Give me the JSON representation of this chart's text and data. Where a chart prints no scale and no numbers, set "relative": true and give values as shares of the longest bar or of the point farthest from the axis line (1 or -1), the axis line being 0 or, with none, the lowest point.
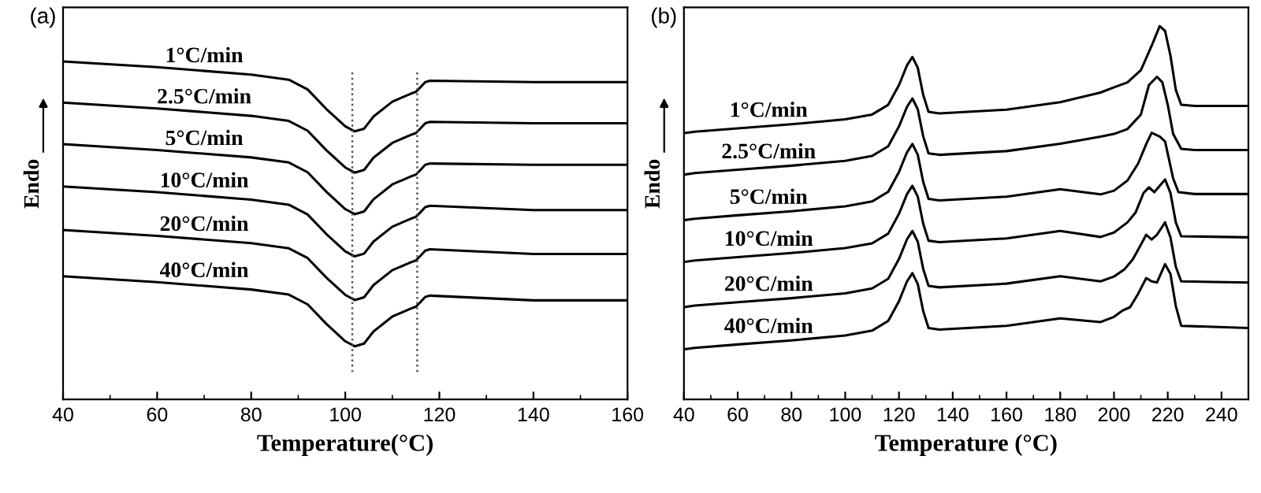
{
  "chart_data": [
    {
      "type": "line",
      "title": "(a)",
      "xlabel": "Temperature(°C)",
      "ylabel": "Endo",
      "relative": true,
      "xlim": [
        40,
        160
      ],
      "xticks": [
        40,
        60,
        80,
        100,
        120,
        140,
        160
      ],
      "grid": false,
      "line_style": "solid",
      "marker": "none",
      "x": [
        40,
        60,
        80,
        88,
        92,
        96,
        100,
        102,
        104,
        106,
        110,
        114,
        115,
        116,
        117,
        118,
        140,
        160
      ],
      "series": [
        {
          "name": "1°C/min",
          "color": "#000000",
          "values": [
            1.0,
            0.983,
            0.961,
            0.946,
            0.917,
            0.859,
            0.808,
            0.793,
            0.801,
            0.837,
            0.881,
            0.905,
            0.91,
            0.924,
            0.939,
            0.943,
            0.939,
            0.939
          ]
        },
        {
          "name": "2.5°C/min",
          "color": "#000000",
          "values": [
            0.878,
            0.861,
            0.839,
            0.824,
            0.795,
            0.737,
            0.686,
            0.671,
            0.679,
            0.715,
            0.759,
            0.783,
            0.788,
            0.802,
            0.817,
            0.821,
            0.817,
            0.817
          ]
        },
        {
          "name": "5°C/min",
          "color": "#000000",
          "values": [
            0.755,
            0.738,
            0.716,
            0.701,
            0.672,
            0.614,
            0.563,
            0.548,
            0.556,
            0.592,
            0.636,
            0.66,
            0.665,
            0.679,
            0.694,
            0.698,
            0.694,
            0.694
          ]
        },
        {
          "name": "10°C/min",
          "color": "#000000",
          "values": [
            0.63,
            0.613,
            0.591,
            0.576,
            0.547,
            0.489,
            0.438,
            0.423,
            0.431,
            0.467,
            0.511,
            0.535,
            0.54,
            0.554,
            0.569,
            0.573,
            0.56,
            0.56
          ]
        },
        {
          "name": "20°C/min",
          "color": "#000000",
          "values": [
            0.501,
            0.484,
            0.462,
            0.447,
            0.418,
            0.36,
            0.309,
            0.294,
            0.302,
            0.338,
            0.382,
            0.406,
            0.411,
            0.425,
            0.44,
            0.444,
            0.43,
            0.43
          ]
        },
        {
          "name": "40°C/min",
          "color": "#000000",
          "values": [
            0.364,
            0.347,
            0.325,
            0.31,
            0.281,
            0.223,
            0.172,
            0.157,
            0.165,
            0.201,
            0.245,
            0.269,
            0.274,
            0.288,
            0.303,
            0.307,
            0.293,
            0.293
          ]
        }
      ],
      "ref_lines": [
        {
          "axis": "x",
          "value": 101.5,
          "color": "#555555",
          "line_style": "dotted"
        },
        {
          "axis": "x",
          "value": 115.3,
          "color": "#555555",
          "line_style": "dotted"
        }
      ]
    },
    {
      "type": "line",
      "title": "(b)",
      "xlabel": "Temperature (°C)",
      "ylabel": "Endo",
      "relative": true,
      "xlim": [
        40,
        250
      ],
      "xticks": [
        40,
        60,
        80,
        100,
        120,
        140,
        160,
        180,
        200,
        220,
        240
      ],
      "grid": false,
      "line_style": "solid",
      "marker": "none",
      "series": [
        {
          "name": "1°C/min",
          "color": "#000000",
          "x": [
            40,
            44,
            60,
            80,
            100,
            110,
            116,
            120,
            123,
            125,
            127,
            129,
            131,
            135,
            160,
            180,
            195,
            200,
            205,
            210,
            214,
            217,
            219,
            221,
            223,
            225,
            230,
            250
          ],
          "values": [
            0.713,
            0.717,
            0.726,
            0.737,
            0.75,
            0.763,
            0.789,
            0.842,
            0.895,
            0.917,
            0.888,
            0.816,
            0.77,
            0.766,
            0.776,
            0.796,
            0.822,
            0.836,
            0.849,
            0.882,
            0.947,
            1.0,
            0.987,
            0.921,
            0.829,
            0.789,
            0.786,
            0.786
          ]
        },
        {
          "name": "2.5°C/min",
          "color": "#000000",
          "x": [
            40,
            44,
            60,
            80,
            100,
            110,
            116,
            120,
            123,
            125,
            127,
            129,
            131,
            135,
            160,
            180,
            195,
            200,
            205,
            210,
            213,
            216,
            218,
            220,
            222,
            225,
            230,
            250
          ],
          "values": [
            0.602,
            0.606,
            0.615,
            0.626,
            0.639,
            0.652,
            0.678,
            0.731,
            0.784,
            0.806,
            0.777,
            0.705,
            0.659,
            0.655,
            0.665,
            0.685,
            0.704,
            0.711,
            0.724,
            0.763,
            0.842,
            0.864,
            0.849,
            0.789,
            0.711,
            0.671,
            0.668,
            0.668
          ]
        },
        {
          "name": "5°C/min",
          "color": "#000000",
          "x": [
            40,
            44,
            60,
            80,
            100,
            110,
            116,
            120,
            123,
            125,
            127,
            129,
            131,
            135,
            160,
            180,
            195,
            200,
            205,
            209,
            212,
            214,
            217,
            219,
            220,
            222,
            224,
            230,
            250
          ],
          "values": [
            0.48,
            0.484,
            0.493,
            0.504,
            0.517,
            0.53,
            0.556,
            0.609,
            0.662,
            0.684,
            0.655,
            0.583,
            0.537,
            0.533,
            0.543,
            0.563,
            0.549,
            0.559,
            0.586,
            0.632,
            0.684,
            0.714,
            0.704,
            0.691,
            0.658,
            0.592,
            0.555,
            0.55,
            0.55
          ]
        },
        {
          "name": "10°C/min",
          "color": "#000000",
          "x": [
            40,
            44,
            60,
            80,
            100,
            110,
            116,
            120,
            123,
            125,
            127,
            129,
            131,
            135,
            160,
            180,
            195,
            200,
            205,
            208,
            211,
            213,
            215,
            217,
            219,
            221,
            223,
            225,
            250
          ],
          "values": [
            0.368,
            0.372,
            0.381,
            0.392,
            0.405,
            0.418,
            0.444,
            0.497,
            0.55,
            0.572,
            0.543,
            0.471,
            0.425,
            0.421,
            0.431,
            0.451,
            0.435,
            0.447,
            0.474,
            0.5,
            0.553,
            0.568,
            0.555,
            0.572,
            0.589,
            0.553,
            0.474,
            0.437,
            0.434
          ]
        },
        {
          "name": "20°C/min",
          "color": "#000000",
          "x": [
            40,
            44,
            60,
            80,
            100,
            110,
            116,
            120,
            123,
            125,
            127,
            129,
            131,
            135,
            160,
            180,
            195,
            200,
            204,
            207,
            210,
            212,
            214,
            216,
            219,
            221,
            223,
            225,
            250
          ],
          "values": [
            0.247,
            0.251,
            0.26,
            0.271,
            0.284,
            0.297,
            0.323,
            0.376,
            0.429,
            0.451,
            0.422,
            0.35,
            0.304,
            0.3,
            0.31,
            0.33,
            0.316,
            0.329,
            0.349,
            0.375,
            0.414,
            0.441,
            0.428,
            0.441,
            0.474,
            0.434,
            0.355,
            0.316,
            0.313
          ]
        },
        {
          "name": "40°C/min",
          "color": "#000000",
          "x": [
            40,
            44,
            60,
            80,
            100,
            110,
            116,
            120,
            123,
            125,
            127,
            129,
            131,
            135,
            160,
            180,
            195,
            200,
            203,
            206,
            209,
            212,
            214,
            216,
            219,
            221,
            223,
            225,
            250
          ],
          "values": [
            0.134,
            0.138,
            0.147,
            0.158,
            0.171,
            0.184,
            0.21,
            0.263,
            0.316,
            0.338,
            0.309,
            0.237,
            0.191,
            0.187,
            0.197,
            0.217,
            0.207,
            0.221,
            0.237,
            0.247,
            0.283,
            0.325,
            0.316,
            0.313,
            0.362,
            0.336,
            0.25,
            0.197,
            0.191
          ]
        }
      ]
    }
  ]
}
